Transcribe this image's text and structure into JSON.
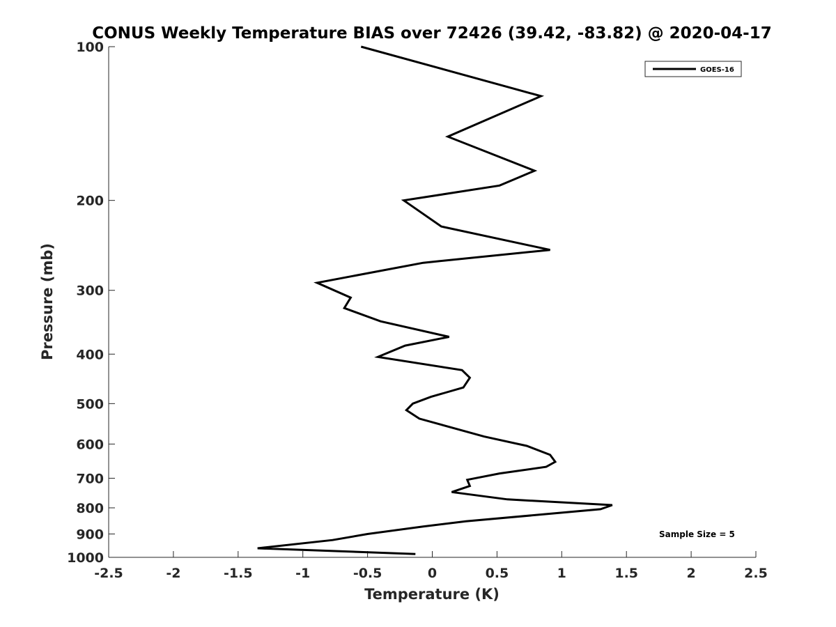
{
  "chart_data": {
    "type": "line",
    "title": "CONUS Weekly Temperature BIAS over 72426 (39.42, -83.82) @ 2020-04-17",
    "xlabel": "Temperature (K)",
    "ylabel": "Pressure (mb)",
    "xlim": [
      -2.5,
      2.5
    ],
    "ylim": [
      1000,
      100
    ],
    "yscale": "log",
    "y_reversed": true,
    "grid": false,
    "x_ticks": [
      -2.5,
      -2,
      -1.5,
      -1,
      -0.5,
      0,
      0.5,
      1,
      1.5,
      2,
      2.5
    ],
    "x_tick_labels": [
      "-2.5",
      "-2",
      "-1.5",
      "-1",
      "-0.5",
      "0",
      "0.5",
      "1",
      "1.5",
      "2",
      "2.5"
    ],
    "y_ticks": [
      100,
      200,
      300,
      400,
      500,
      600,
      700,
      800,
      900,
      1000
    ],
    "y_tick_labels": [
      "100",
      "200",
      "300",
      "400",
      "500",
      "600",
      "700",
      "800",
      "900",
      "1000"
    ],
    "legend": {
      "placement": "top-right",
      "entries": [
        "GOES-16"
      ]
    },
    "annotation": "Sample Size = 5",
    "series": [
      {
        "name": "GOES-16",
        "color": "#000000",
        "points": [
          {
            "x": -0.55,
            "p": 100
          },
          {
            "x": 0.84,
            "p": 125
          },
          {
            "x": 0.12,
            "p": 150
          },
          {
            "x": 0.79,
            "p": 175
          },
          {
            "x": 0.52,
            "p": 187
          },
          {
            "x": -0.22,
            "p": 200
          },
          {
            "x": 0.07,
            "p": 225
          },
          {
            "x": 0.91,
            "p": 250
          },
          {
            "x": -0.07,
            "p": 265
          },
          {
            "x": -0.89,
            "p": 290
          },
          {
            "x": -0.63,
            "p": 310
          },
          {
            "x": -0.68,
            "p": 325
          },
          {
            "x": -0.4,
            "p": 345
          },
          {
            "x": 0.13,
            "p": 370
          },
          {
            "x": -0.21,
            "p": 385
          },
          {
            "x": -0.42,
            "p": 405
          },
          {
            "x": 0.23,
            "p": 430
          },
          {
            "x": 0.29,
            "p": 445
          },
          {
            "x": 0.24,
            "p": 465
          },
          {
            "x": -0.01,
            "p": 485
          },
          {
            "x": -0.15,
            "p": 500
          },
          {
            "x": -0.2,
            "p": 515
          },
          {
            "x": -0.1,
            "p": 535
          },
          {
            "x": 0.4,
            "p": 580
          },
          {
            "x": 0.73,
            "p": 605
          },
          {
            "x": 0.91,
            "p": 630
          },
          {
            "x": 0.95,
            "p": 650
          },
          {
            "x": 0.88,
            "p": 665
          },
          {
            "x": 0.52,
            "p": 685
          },
          {
            "x": 0.27,
            "p": 705
          },
          {
            "x": 0.29,
            "p": 725
          },
          {
            "x": 0.15,
            "p": 745
          },
          {
            "x": 0.58,
            "p": 770
          },
          {
            "x": 1.39,
            "p": 790
          },
          {
            "x": 1.3,
            "p": 805
          },
          {
            "x": 0.26,
            "p": 850
          },
          {
            "x": -0.07,
            "p": 870
          },
          {
            "x": -0.5,
            "p": 900
          },
          {
            "x": -0.77,
            "p": 925
          },
          {
            "x": -1.35,
            "p": 960
          },
          {
            "x": -0.13,
            "p": 985
          }
        ]
      }
    ]
  }
}
